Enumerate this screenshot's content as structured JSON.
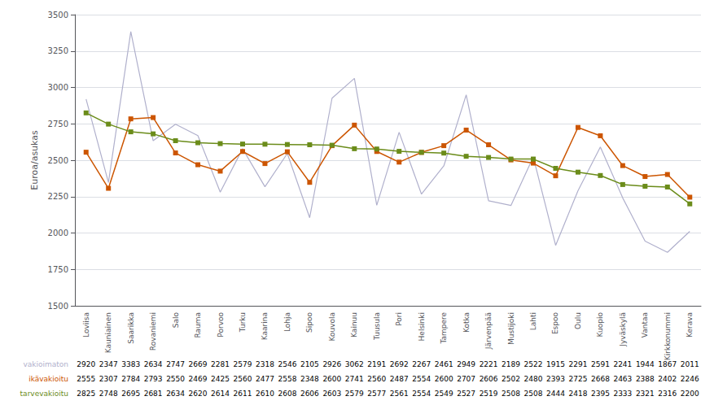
{
  "chart_data": {
    "type": "line",
    "ylabel": "Euroa/asukas",
    "categories": [
      "Loviisa",
      "Kauniainen",
      "Saarikka",
      "Rovaniemi",
      "Salo",
      "Rauma",
      "Porvoo",
      "Turku",
      "Kaarina",
      "Lohja",
      "Sipoo",
      "Kouvola",
      "Kainuu",
      "Tuusula",
      "Pori",
      "Helsinki",
      "Tampere",
      "Kotka",
      "Järvenpää",
      "Mustijoki",
      "Lahti",
      "Espoo",
      "Oulu",
      "Kuopio",
      "Jyväskylä",
      "Vantaa",
      "Kirkkonummi",
      "Kerava"
    ],
    "series": [
      {
        "name": "vakioimaton",
        "color": "#b0b0cc",
        "marker": "none",
        "values": [
          2920,
          2347,
          3383,
          2634,
          2747,
          2669,
          2281,
          2579,
          2318,
          2546,
          2105,
          2926,
          3062,
          2191,
          2692,
          2267,
          2461,
          2949,
          2221,
          2189,
          2522,
          1915,
          2291,
          2591,
          2241,
          1944,
          1867,
          2011
        ]
      },
      {
        "name": "ikävakioitu",
        "color": "#cc5500",
        "marker": "square",
        "values": [
          2555,
          2307,
          2784,
          2793,
          2550,
          2469,
          2425,
          2560,
          2477,
          2558,
          2348,
          2600,
          2741,
          2560,
          2487,
          2554,
          2600,
          2707,
          2606,
          2502,
          2480,
          2393,
          2725,
          2668,
          2463,
          2388,
          2402,
          2246
        ]
      },
      {
        "name": "tarvevakioitu",
        "color": "#6b8c1a",
        "marker": "square",
        "values": [
          2825,
          2748,
          2695,
          2681,
          2634,
          2620,
          2614,
          2611,
          2610,
          2608,
          2606,
          2603,
          2579,
          2577,
          2561,
          2554,
          2549,
          2527,
          2519,
          2508,
          2508,
          2444,
          2418,
          2395,
          2333,
          2321,
          2316,
          2200
        ]
      }
    ],
    "ylim": [
      1500,
      3500
    ],
    "yticks": [
      1500,
      1750,
      2000,
      2250,
      2500,
      2750,
      3000,
      3250,
      3500
    ],
    "grid": true
  }
}
